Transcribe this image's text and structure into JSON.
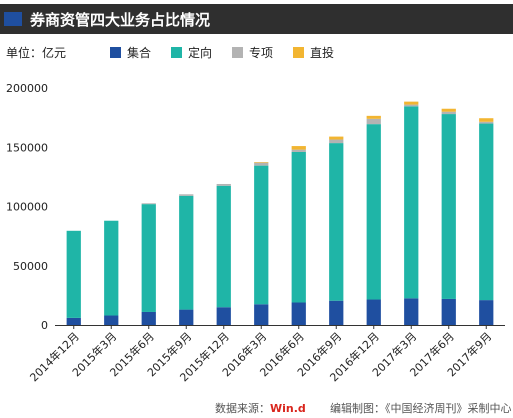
{
  "header": {
    "title": "券商资管四大业务占比情况"
  },
  "unit_label": "单位：亿元",
  "footer": {
    "source_prefix": "数据来源：",
    "source_brand": "Win.d",
    "editor": "编辑制图：《中国经济周刊》采制中心"
  },
  "colors": {
    "jihe": "#1f4fa0",
    "dingxiang": "#1fb5a7",
    "zhuanxiang": "#b3b3b3",
    "zhitou": "#f2b531",
    "title_bg": "#2f2f2f",
    "axis": "#333333"
  },
  "chart_data": {
    "type": "bar",
    "stacked": true,
    "title": "券商资管四大业务占比情况",
    "xlabel": "",
    "ylabel": "",
    "ylim": [
      0,
      200000
    ],
    "yticks": [
      0,
      50000,
      100000,
      150000,
      200000
    ],
    "grid": false,
    "legend_position": "top",
    "categories": [
      "2014年12月",
      "2015年3月",
      "2015年6月",
      "2015年9月",
      "2015年12月",
      "2016年3月",
      "2016年6月",
      "2016年9月",
      "2016年12月",
      "2017年3月",
      "2017年6月",
      "2017年9月"
    ],
    "series": [
      {
        "name": "集合",
        "key": "jihe",
        "values": [
          6000,
          8000,
          11000,
          13000,
          15000,
          17500,
          19000,
          20500,
          21500,
          22500,
          22000,
          21000
        ]
      },
      {
        "name": "定向",
        "key": "dingxiang",
        "values": [
          73500,
          80000,
          91000,
          96000,
          102500,
          117000,
          127000,
          133000,
          148000,
          162000,
          156000,
          149000
        ]
      },
      {
        "name": "专项",
        "key": "zhuanxiang",
        "values": [
          0,
          0,
          700,
          1300,
          1500,
          2500,
          2000,
          3000,
          4500,
          1500,
          2000,
          1500
        ]
      },
      {
        "name": "直投",
        "key": "zhitou",
        "values": [
          0,
          0,
          0,
          0,
          0,
          500,
          3000,
          2500,
          2500,
          2500,
          2500,
          3000
        ]
      }
    ]
  }
}
